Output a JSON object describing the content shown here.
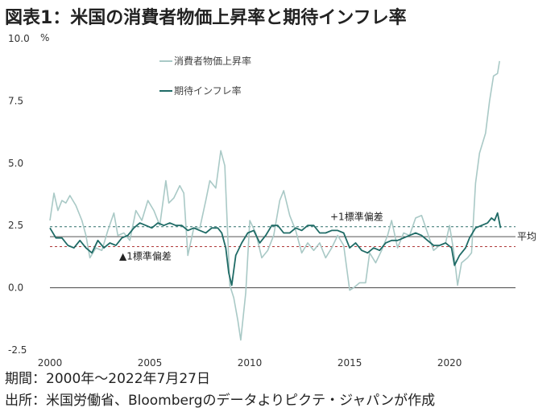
{
  "title": "図表1：米国の消費者物価上昇率と期待インフレ率",
  "footer": {
    "period": "期間：2000年～2022年7月27日",
    "source": "出所：米国労働省、Bloombergのデータよりピクテ・ジャパンが作成"
  },
  "chart_data": {
    "type": "line",
    "unit": "%",
    "ylim": [
      -2.5,
      10.0
    ],
    "xlim": [
      2000,
      2023.3
    ],
    "y_ticks": [
      "10.0",
      "7.5",
      "5.0",
      "2.5",
      "0.0",
      "-2.5"
    ],
    "y_tick_values": [
      10.0,
      7.5,
      5.0,
      2.5,
      0.0,
      -2.5
    ],
    "x_ticks": [
      "2000",
      "2005",
      "2010",
      "2015",
      "2020"
    ],
    "x_tick_values": [
      2000,
      2005,
      2010,
      2015,
      2020
    ],
    "legend_position": "top-center",
    "reference_lines": {
      "mean": {
        "label": "平均",
        "value": 2.05,
        "color": "#555555"
      },
      "plus_1sd": {
        "label": "+1標準偏差",
        "value": 2.45,
        "color": "#2e6e6a"
      },
      "minus_1sd": {
        "label": "▲1標準偏差",
        "value": 1.65,
        "color": "#b03a3a"
      }
    },
    "series": [
      {
        "name": "消費者物価上昇率",
        "color": "#a9c9c6",
        "x": [
          2000.0,
          2000.2,
          2000.4,
          2000.6,
          2000.8,
          2001.0,
          2001.3,
          2001.6,
          2001.8,
          2002.0,
          2002.3,
          2002.6,
          2002.9,
          2003.2,
          2003.4,
          2003.7,
          2004.0,
          2004.3,
          2004.6,
          2004.9,
          2005.2,
          2005.5,
          2005.8,
          2005.95,
          2006.2,
          2006.5,
          2006.7,
          2006.9,
          2007.2,
          2007.5,
          2007.8,
          2008.0,
          2008.3,
          2008.55,
          2008.75,
          2009.0,
          2009.2,
          2009.4,
          2009.55,
          2009.8,
          2010.0,
          2010.3,
          2010.6,
          2010.9,
          2011.2,
          2011.5,
          2011.7,
          2012.0,
          2012.3,
          2012.6,
          2012.9,
          2013.2,
          2013.5,
          2013.8,
          2014.1,
          2014.4,
          2014.7,
          2015.0,
          2015.2,
          2015.5,
          2015.8,
          2016.0,
          2016.3,
          2016.6,
          2016.9,
          2017.1,
          2017.4,
          2017.7,
          2018.0,
          2018.3,
          2018.6,
          2018.9,
          2019.2,
          2019.5,
          2019.8,
          2020.0,
          2020.2,
          2020.4,
          2020.6,
          2020.9,
          2021.1,
          2021.3,
          2021.5,
          2021.8,
          2022.0,
          2022.2,
          2022.4,
          2022.5
        ],
        "values": [
          2.7,
          3.8,
          3.1,
          3.5,
          3.4,
          3.7,
          3.3,
          2.7,
          2.1,
          1.2,
          1.6,
          1.5,
          2.3,
          3.0,
          2.1,
          2.2,
          1.9,
          3.1,
          2.7,
          3.5,
          3.1,
          2.5,
          4.3,
          3.4,
          3.6,
          4.1,
          3.8,
          1.3,
          2.4,
          2.4,
          3.5,
          4.3,
          4.0,
          5.5,
          4.9,
          0.1,
          -0.4,
          -1.3,
          -2.1,
          -0.2,
          2.7,
          2.2,
          1.2,
          1.5,
          2.1,
          3.5,
          3.9,
          2.9,
          2.3,
          1.4,
          1.8,
          1.5,
          1.8,
          1.2,
          1.6,
          2.1,
          1.7,
          -0.1,
          0.0,
          0.2,
          0.2,
          1.4,
          1.0,
          1.5,
          2.1,
          2.7,
          1.6,
          2.2,
          2.1,
          2.8,
          2.9,
          2.2,
          1.5,
          1.7,
          1.8,
          2.5,
          1.5,
          0.1,
          1.0,
          1.2,
          1.4,
          4.2,
          5.4,
          6.2,
          7.5,
          8.5,
          8.6,
          9.1
        ]
      },
      {
        "name": "期待インフレ率",
        "color": "#1f6b66",
        "x": [
          2000.0,
          2000.3,
          2000.6,
          2000.9,
          2001.2,
          2001.5,
          2001.8,
          2002.1,
          2002.4,
          2002.7,
          2003.0,
          2003.3,
          2003.6,
          2003.9,
          2004.2,
          2004.5,
          2004.8,
          2005.1,
          2005.4,
          2005.7,
          2006.0,
          2006.3,
          2006.6,
          2006.9,
          2007.2,
          2007.5,
          2007.8,
          2008.1,
          2008.4,
          2008.6,
          2008.8,
          2008.95,
          2009.1,
          2009.3,
          2009.6,
          2009.9,
          2010.2,
          2010.5,
          2010.8,
          2011.1,
          2011.4,
          2011.7,
          2012.0,
          2012.3,
          2012.6,
          2012.9,
          2013.2,
          2013.5,
          2013.8,
          2014.1,
          2014.4,
          2014.7,
          2015.0,
          2015.3,
          2015.6,
          2015.9,
          2016.2,
          2016.5,
          2016.8,
          2017.1,
          2017.4,
          2017.7,
          2018.0,
          2018.3,
          2018.6,
          2018.9,
          2019.2,
          2019.5,
          2019.8,
          2020.1,
          2020.25,
          2020.5,
          2020.8,
          2021.0,
          2021.3,
          2021.6,
          2021.9,
          2022.1,
          2022.25,
          2022.4,
          2022.55
        ],
        "values": [
          2.4,
          2.0,
          2.0,
          1.7,
          1.6,
          1.9,
          1.6,
          1.4,
          1.9,
          1.6,
          1.8,
          1.7,
          2.0,
          2.1,
          2.4,
          2.6,
          2.5,
          2.4,
          2.6,
          2.5,
          2.6,
          2.5,
          2.5,
          2.3,
          2.4,
          2.3,
          2.2,
          2.4,
          2.4,
          2.2,
          1.6,
          0.6,
          0.1,
          1.3,
          1.8,
          2.2,
          2.3,
          1.8,
          2.1,
          2.5,
          2.5,
          2.2,
          2.2,
          2.4,
          2.3,
          2.5,
          2.5,
          2.2,
          2.2,
          2.3,
          2.3,
          2.2,
          1.6,
          1.8,
          1.5,
          1.4,
          1.6,
          1.5,
          1.8,
          1.9,
          1.9,
          2.0,
          2.1,
          2.2,
          2.1,
          1.9,
          1.7,
          1.7,
          1.8,
          1.6,
          0.9,
          1.3,
          1.6,
          2.0,
          2.4,
          2.5,
          2.6,
          2.8,
          2.7,
          3.0,
          2.4
        ]
      }
    ]
  }
}
